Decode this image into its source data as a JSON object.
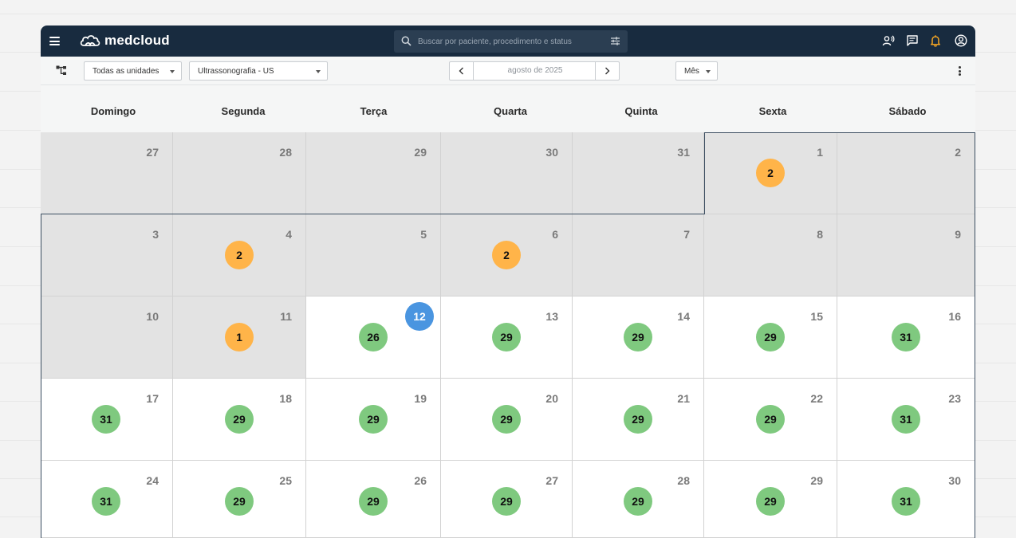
{
  "app": {
    "brand": "medcloud",
    "search": {
      "placeholder": "Buscar por paciente, procedimento e status"
    }
  },
  "toolbar": {
    "unit_select": "Todas as unidades",
    "modality_select": "Ultrassonografia - US",
    "current_period": "agosto de 2025",
    "view_select": "Mês"
  },
  "calendar": {
    "weekdays": [
      "Domingo",
      "Segunda",
      "Terça",
      "Quarta",
      "Quinta",
      "Sexta",
      "Sábado"
    ],
    "today": "12",
    "colors": {
      "past_day_bg": "#e3e3e3",
      "future_day_bg": "#ffffff",
      "pending_badge": "#ffb449",
      "available_badge": "#7fc97f",
      "today_badge": "#4a95e0"
    },
    "weeks": [
      [
        {
          "day": "27",
          "count": "",
          "status": "out"
        },
        {
          "day": "28",
          "count": "",
          "status": "out"
        },
        {
          "day": "29",
          "count": "",
          "status": "out"
        },
        {
          "day": "30",
          "count": "",
          "status": "out"
        },
        {
          "day": "31",
          "count": "",
          "status": "out"
        },
        {
          "day": "1",
          "count": "2",
          "status": "past",
          "badge": "pending"
        },
        {
          "day": "2",
          "count": "",
          "status": "past"
        }
      ],
      [
        {
          "day": "3",
          "count": "",
          "status": "past"
        },
        {
          "day": "4",
          "count": "2",
          "status": "past",
          "badge": "pending"
        },
        {
          "day": "5",
          "count": "",
          "status": "past"
        },
        {
          "day": "6",
          "count": "2",
          "status": "past",
          "badge": "pending"
        },
        {
          "day": "7",
          "count": "",
          "status": "past"
        },
        {
          "day": "8",
          "count": "",
          "status": "past"
        },
        {
          "day": "9",
          "count": "",
          "status": "past"
        }
      ],
      [
        {
          "day": "10",
          "count": "",
          "status": "past"
        },
        {
          "day": "11",
          "count": "1",
          "status": "past",
          "badge": "pending"
        },
        {
          "day": "12",
          "count": "26",
          "status": "today",
          "badge": "available"
        },
        {
          "day": "13",
          "count": "29",
          "status": "future",
          "badge": "available"
        },
        {
          "day": "14",
          "count": "29",
          "status": "future",
          "badge": "available"
        },
        {
          "day": "15",
          "count": "29",
          "status": "future",
          "badge": "available"
        },
        {
          "day": "16",
          "count": "31",
          "status": "future",
          "badge": "available"
        }
      ],
      [
        {
          "day": "17",
          "count": "31",
          "status": "future",
          "badge": "available"
        },
        {
          "day": "18",
          "count": "29",
          "status": "future",
          "badge": "available"
        },
        {
          "day": "19",
          "count": "29",
          "status": "future",
          "badge": "available"
        },
        {
          "day": "20",
          "count": "29",
          "status": "future",
          "badge": "available"
        },
        {
          "day": "21",
          "count": "29",
          "status": "future",
          "badge": "available"
        },
        {
          "day": "22",
          "count": "29",
          "status": "future",
          "badge": "available"
        },
        {
          "day": "23",
          "count": "31",
          "status": "future",
          "badge": "available"
        }
      ],
      [
        {
          "day": "24",
          "count": "31",
          "status": "future",
          "badge": "available"
        },
        {
          "day": "25",
          "count": "29",
          "status": "future",
          "badge": "available"
        },
        {
          "day": "26",
          "count": "29",
          "status": "future",
          "badge": "available"
        },
        {
          "day": "27",
          "count": "29",
          "status": "future",
          "badge": "available"
        },
        {
          "day": "28",
          "count": "29",
          "status": "future",
          "badge": "available"
        },
        {
          "day": "29",
          "count": "29",
          "status": "future",
          "badge": "available"
        },
        {
          "day": "30",
          "count": "31",
          "status": "future",
          "badge": "available"
        }
      ]
    ],
    "icons": [
      "menu-icon",
      "medcloud-logo-icon",
      "search-icon",
      "filter-sliders-icon",
      "voice-user-icon",
      "chat-icon",
      "bell-icon",
      "account-icon",
      "hierarchy-icon",
      "chevron-left-icon",
      "chevron-right-icon",
      "more-vertical-icon"
    ]
  }
}
